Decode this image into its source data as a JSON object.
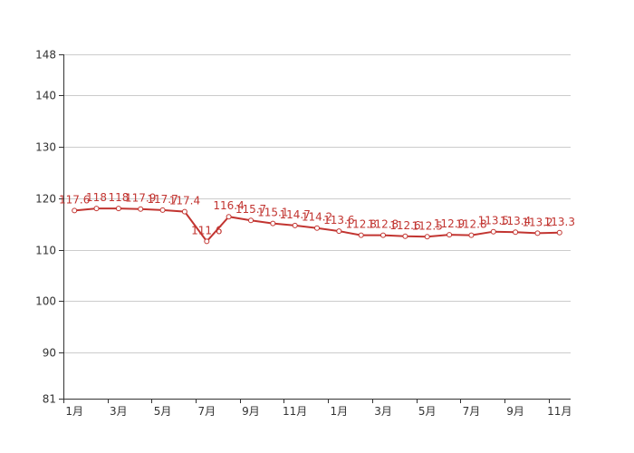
{
  "chart_data": {
    "type": "line",
    "title": "",
    "xlabel": "",
    "ylabel": "",
    "ylim": [
      81,
      148
    ],
    "yticks": [
      148,
      140,
      130,
      120,
      110,
      100,
      90,
      81
    ],
    "x_tick_labels": [
      "1月",
      "3月",
      "5月",
      "7月",
      "9月",
      "11月",
      "1月",
      "3月",
      "5月",
      "7月",
      "9月",
      "11月"
    ],
    "grid": true,
    "series": [
      {
        "values": [
          117.6,
          118,
          118,
          117.9,
          117.7,
          117.4,
          111.6,
          116.4,
          115.7,
          115.1,
          114.7,
          114.2,
          113.6,
          112.8,
          112.8,
          112.6,
          112.5,
          112.9,
          112.8,
          113.5,
          113.4,
          113.2,
          113.3
        ],
        "labels": [
          "117.6",
          "118",
          "118",
          "117.9",
          "117.7",
          "117.4",
          "111.6",
          "116.4",
          "115.7",
          "115.1",
          "114.7",
          "114.2",
          "113.6",
          "112.8",
          "112.8",
          "112.6",
          "112.5",
          "112.9",
          "112.8",
          "113.5",
          "113.4",
          "113.2",
          "113.3"
        ],
        "color": "#c23531"
      }
    ]
  }
}
